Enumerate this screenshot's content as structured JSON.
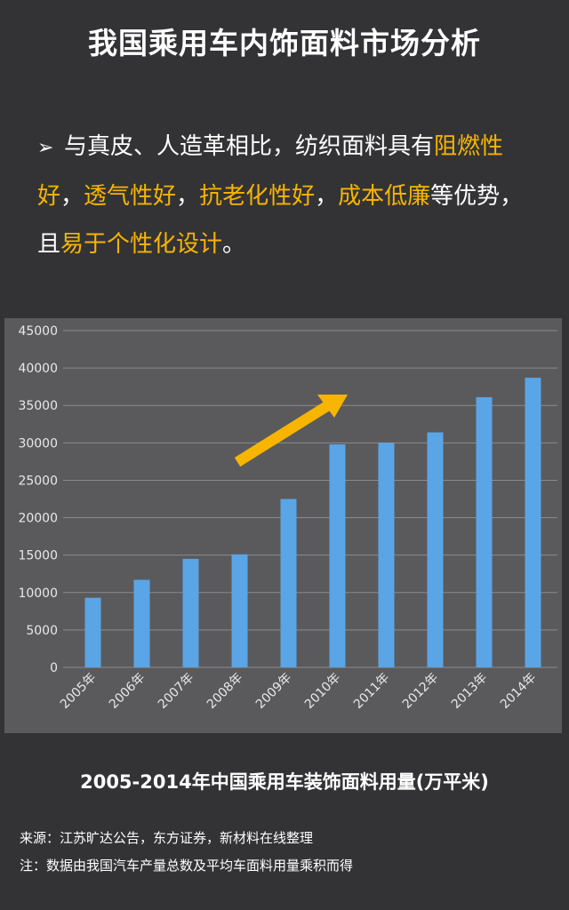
{
  "header": {
    "title": "我国乘用车内饰面料市场分析"
  },
  "bullet": {
    "segments": [
      {
        "text": "与真皮、人造革相比，纺织面料具有",
        "highlight": false
      },
      {
        "text": "阻燃性好",
        "highlight": true
      },
      {
        "text": "，",
        "highlight": false
      },
      {
        "text": "透气性好",
        "highlight": true
      },
      {
        "text": "，",
        "highlight": false
      },
      {
        "text": "抗老化性好",
        "highlight": true
      },
      {
        "text": "，",
        "highlight": false
      },
      {
        "text": "成本低廉",
        "highlight": true
      },
      {
        "text": "等优势，且",
        "highlight": false
      },
      {
        "text": "易于个性化设计",
        "highlight": true
      },
      {
        "text": "。",
        "highlight": false
      }
    ]
  },
  "colors": {
    "background": "#333336",
    "panel": "#5a5a5c",
    "bar": "#5aa5e6",
    "highlight": "#f7b500",
    "arrow": "#f7b500"
  },
  "chart_data": {
    "type": "bar",
    "categories": [
      "2005年",
      "2006年",
      "2007年",
      "2008年",
      "2009年",
      "2010年",
      "2011年",
      "2012年",
      "2013年",
      "2014年"
    ],
    "values": [
      9300,
      11700,
      14500,
      15100,
      22500,
      29800,
      30000,
      31400,
      36100,
      38700
    ],
    "ylim": [
      0,
      45000
    ],
    "yticks": [
      0,
      5000,
      10000,
      15000,
      20000,
      25000,
      30000,
      35000,
      40000,
      45000
    ],
    "grid": true,
    "annotation": "upward-trend-arrow"
  },
  "caption": "2005-2014年中国乘用车装饰面料用量(万平米)",
  "notes": {
    "source": "来源：江苏旷达公告，东方证券，新材料在线整理",
    "remark": "注：数据由我国汽车产量总数及平均车面料用量乘积而得"
  }
}
